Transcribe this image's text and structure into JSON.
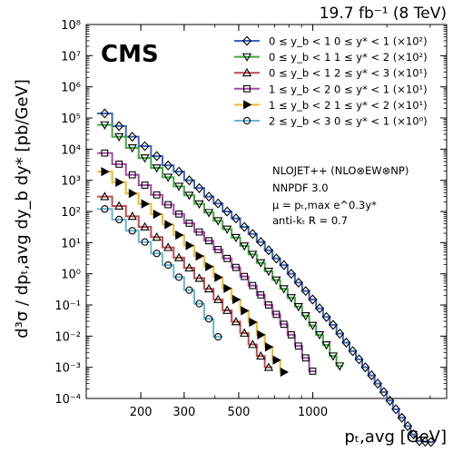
{
  "chart_data": {
    "type": "line",
    "top_label": "19.7 fb⁻¹ (8 TeV)",
    "experiment_label": "CMS",
    "xlabel": "pₜ,avg [GeV]",
    "ylabel": "d³σ / dpₜ,avg dy_b dy* [pb/GeV]",
    "xscale": "log",
    "yscale": "log",
    "xlim": [
      120,
      3500
    ],
    "ylim": [
      0.0001,
      100000000
    ],
    "x_ticks": [
      200,
      300,
      500,
      1000
    ],
    "x_tick_labels": [
      "200",
      "300",
      "500",
      "1000"
    ],
    "y_ticks": [
      0.0001,
      0.001,
      0.01,
      0.1,
      1,
      10,
      100,
      1000,
      10000,
      100000,
      1000000,
      10000000,
      100000000
    ],
    "y_tick_labels": [
      "10⁻⁴",
      "10⁻³",
      "10⁻²",
      "10⁻¹",
      "10⁰",
      "10¹",
      "10²",
      "10³",
      "10⁴",
      "10⁵",
      "10⁶",
      "10⁷",
      "10⁸"
    ],
    "legend_position": "top-right",
    "theory_text": [
      "NLOJET++ (NLO⊗EW⊗NP)",
      "NNPDF 3.0",
      "μ = pₜ,max e^0.3y*",
      "anti-kₜ R = 0.7"
    ],
    "series": [
      {
        "name": "0 ≤ y_b < 1   0 ≤ y* < 1 (×10²)",
        "color": "#3b64c2",
        "marker": "diamond",
        "bin_edges": [
          133,
          153,
          174,
          196,
          220,
          245,
          272,
          300,
          330,
          362,
          395,
          430,
          468,
          507,
          548,
          592,
          638,
          686,
          737,
          790,
          846,
          905,
          967,
          1032,
          1101,
          1172,
          1248,
          1327,
          1410,
          1497,
          1588,
          1684,
          1784,
          1890,
          2000,
          2116,
          2238,
          2366,
          2500,
          2640,
          2787,
          2941,
          3103
        ],
        "theory": [
          140000,
          60000,
          28000,
          14000,
          7000,
          3700,
          2000,
          1100,
          620,
          350,
          200,
          115,
          66,
          38,
          22,
          12.5,
          7.1,
          4.0,
          2.3,
          1.3,
          0.72,
          0.4,
          0.22,
          0.12,
          0.065,
          0.035,
          0.019,
          0.01,
          0.0052,
          0.0027,
          0.0014,
          0.00072,
          0.00037,
          0.00019,
          9.7e-05,
          5e-05,
          2.6e-05,
          1.4e-05,
          7.5e-06,
          4.1e-06,
          2.4e-06,
          1.4e-06
        ],
        "data": [
          150000,
          66000,
          29000,
          14500,
          7200,
          3800,
          2050,
          1120,
          640,
          360,
          205,
          118,
          68,
          39,
          22.5,
          12.8,
          7.3,
          4.1,
          2.35,
          1.33,
          0.74,
          0.41,
          0.225,
          0.123,
          0.067,
          0.036,
          0.0195,
          0.0103,
          0.0054,
          0.0028,
          0.00145,
          0.00075,
          0.00038,
          0.0002,
          0.0001,
          5.1e-05,
          2.7e-05,
          1.45e-05,
          7.8e-06,
          4.2e-06,
          2.5e-06,
          1.5e-06
        ],
        "data_display": [
          140000,
          55000,
          25000,
          12500,
          6000,
          3000,
          1900,
          1000,
          560,
          300,
          180,
          100,
          60,
          32,
          19,
          10.5,
          5.7,
          3.1,
          1.9,
          1.0,
          0.52,
          0.28,
          0.15,
          0.078,
          0.041,
          0.023,
          0.012,
          0.0062,
          0.0033,
          0.0018,
          0.001,
          0.00055,
          0.0003,
          0.00016,
          8.5e-05,
          4.5e-05,
          2.4e-05,
          1.3e-05,
          7e-06,
          4.3e-06,
          4.1e-06,
          4e-06
        ],
        "scaled": [
          140000,
          55000,
          25000,
          12500,
          6000,
          3000,
          1900,
          1000,
          560,
          300,
          180,
          100,
          60,
          32,
          19,
          10.5,
          5.7,
          3.1,
          1.9,
          1.0,
          0.52,
          0.28,
          0.15,
          0.078,
          0.041,
          0.023,
          0.012,
          0.0062,
          0.0033,
          0.0018,
          0.001,
          0.00055,
          0.0003,
          0.00016,
          8.5e-05,
          4.5e-05,
          2.4e-05,
          1.3e-05,
          7e-06,
          4.3e-06,
          4.1e-06,
          4e-06
        ]
      },
      {
        "name": "0 ≤ y_b < 1   1 ≤ y* < 2 (×10²)",
        "color": "#3fa83b",
        "marker": "triangle-down",
        "bin_edges": [
          133,
          153,
          174,
          196,
          220,
          245,
          272,
          300,
          330,
          362,
          395,
          430,
          468,
          507,
          548,
          592,
          638,
          686,
          737,
          790,
          846,
          905,
          967,
          1032,
          1101,
          1172,
          1248,
          1327
        ],
        "scaled": [
          60000,
          25000,
          11000,
          5200,
          2500,
          1250,
          640,
          330,
          175,
          92,
          50,
          27,
          14.5,
          7.8,
          4.2,
          2.25,
          1.2,
          0.63,
          0.33,
          0.17,
          0.088,
          0.045,
          0.022,
          0.011,
          0.0052,
          0.0023,
          0.0011
        ]
      },
      {
        "name": "0 ≤ y_b < 1   2 ≤ y* < 3 (×10¹)",
        "color": "#c0494b",
        "marker": "triangle-up",
        "bin_edges": [
          133,
          153,
          174,
          196,
          220,
          245,
          272,
          300,
          330,
          362,
          395,
          430,
          468,
          507,
          548,
          592,
          638,
          686,
          737,
          790,
          846,
          905,
          967,
          1032
        ],
        "scaled_skip": true,
        "scaled": [
          300,
          150,
          70,
          32,
          15,
          7,
          3.3,
          1.55,
          0.72,
          0.33,
          0.15,
          0.067,
          0.029,
          0.0125,
          0.0054,
          0.0023,
          0.001
        ]
      },
      {
        "name": "1 ≤ y_b < 2   0 ≤ y* < 1 (×10¹)",
        "color": "#a448a8",
        "marker": "square",
        "bin_edges": [
          133,
          153,
          174,
          196,
          220,
          245,
          272,
          300,
          330,
          362,
          395,
          430,
          468,
          507,
          548,
          592,
          638,
          686,
          737,
          790,
          846,
          905,
          967,
          1032
        ],
        "scaled": [
          7500,
          3300,
          1500,
          700,
          340,
          165,
          83,
          42,
          22,
          11.5,
          6.0,
          3.1,
          1.6,
          0.82,
          0.42,
          0.21,
          0.1,
          0.05,
          0.024,
          0.011,
          0.0048,
          0.002,
          0.00075
        ]
      },
      {
        "name": "1 ≤ y_b < 2   1 ≤ y* < 2 (×10¹)",
        "color": "#f0b929",
        "marker": "triangle-right",
        "bin_edges": [
          133,
          153,
          174,
          196,
          220,
          245,
          272,
          300,
          330,
          362,
          395,
          430,
          468,
          507,
          548,
          592,
          638,
          686,
          737,
          790,
          846
        ],
        "scaled": [
          1900,
          860,
          380,
          175,
          82,
          38,
          17.5,
          8.1,
          3.7,
          1.7,
          0.77,
          0.34,
          0.15,
          0.065,
          0.028,
          0.011,
          0.0045,
          0.0017,
          0.0007
        ]
      },
      {
        "name": "2 ≤ y_b < 3   0 ≤ y* < 1 (×10⁰)",
        "color": "#6ab5cf",
        "marker": "circle",
        "bin_edges": [
          133,
          153,
          174,
          196,
          220,
          245,
          272,
          300,
          330,
          362,
          395,
          430
        ],
        "scaled": [
          120,
          55,
          24,
          10.5,
          4.5,
          1.9,
          0.78,
          0.3,
          0.11,
          0.036,
          0.0095
        ]
      }
    ]
  }
}
